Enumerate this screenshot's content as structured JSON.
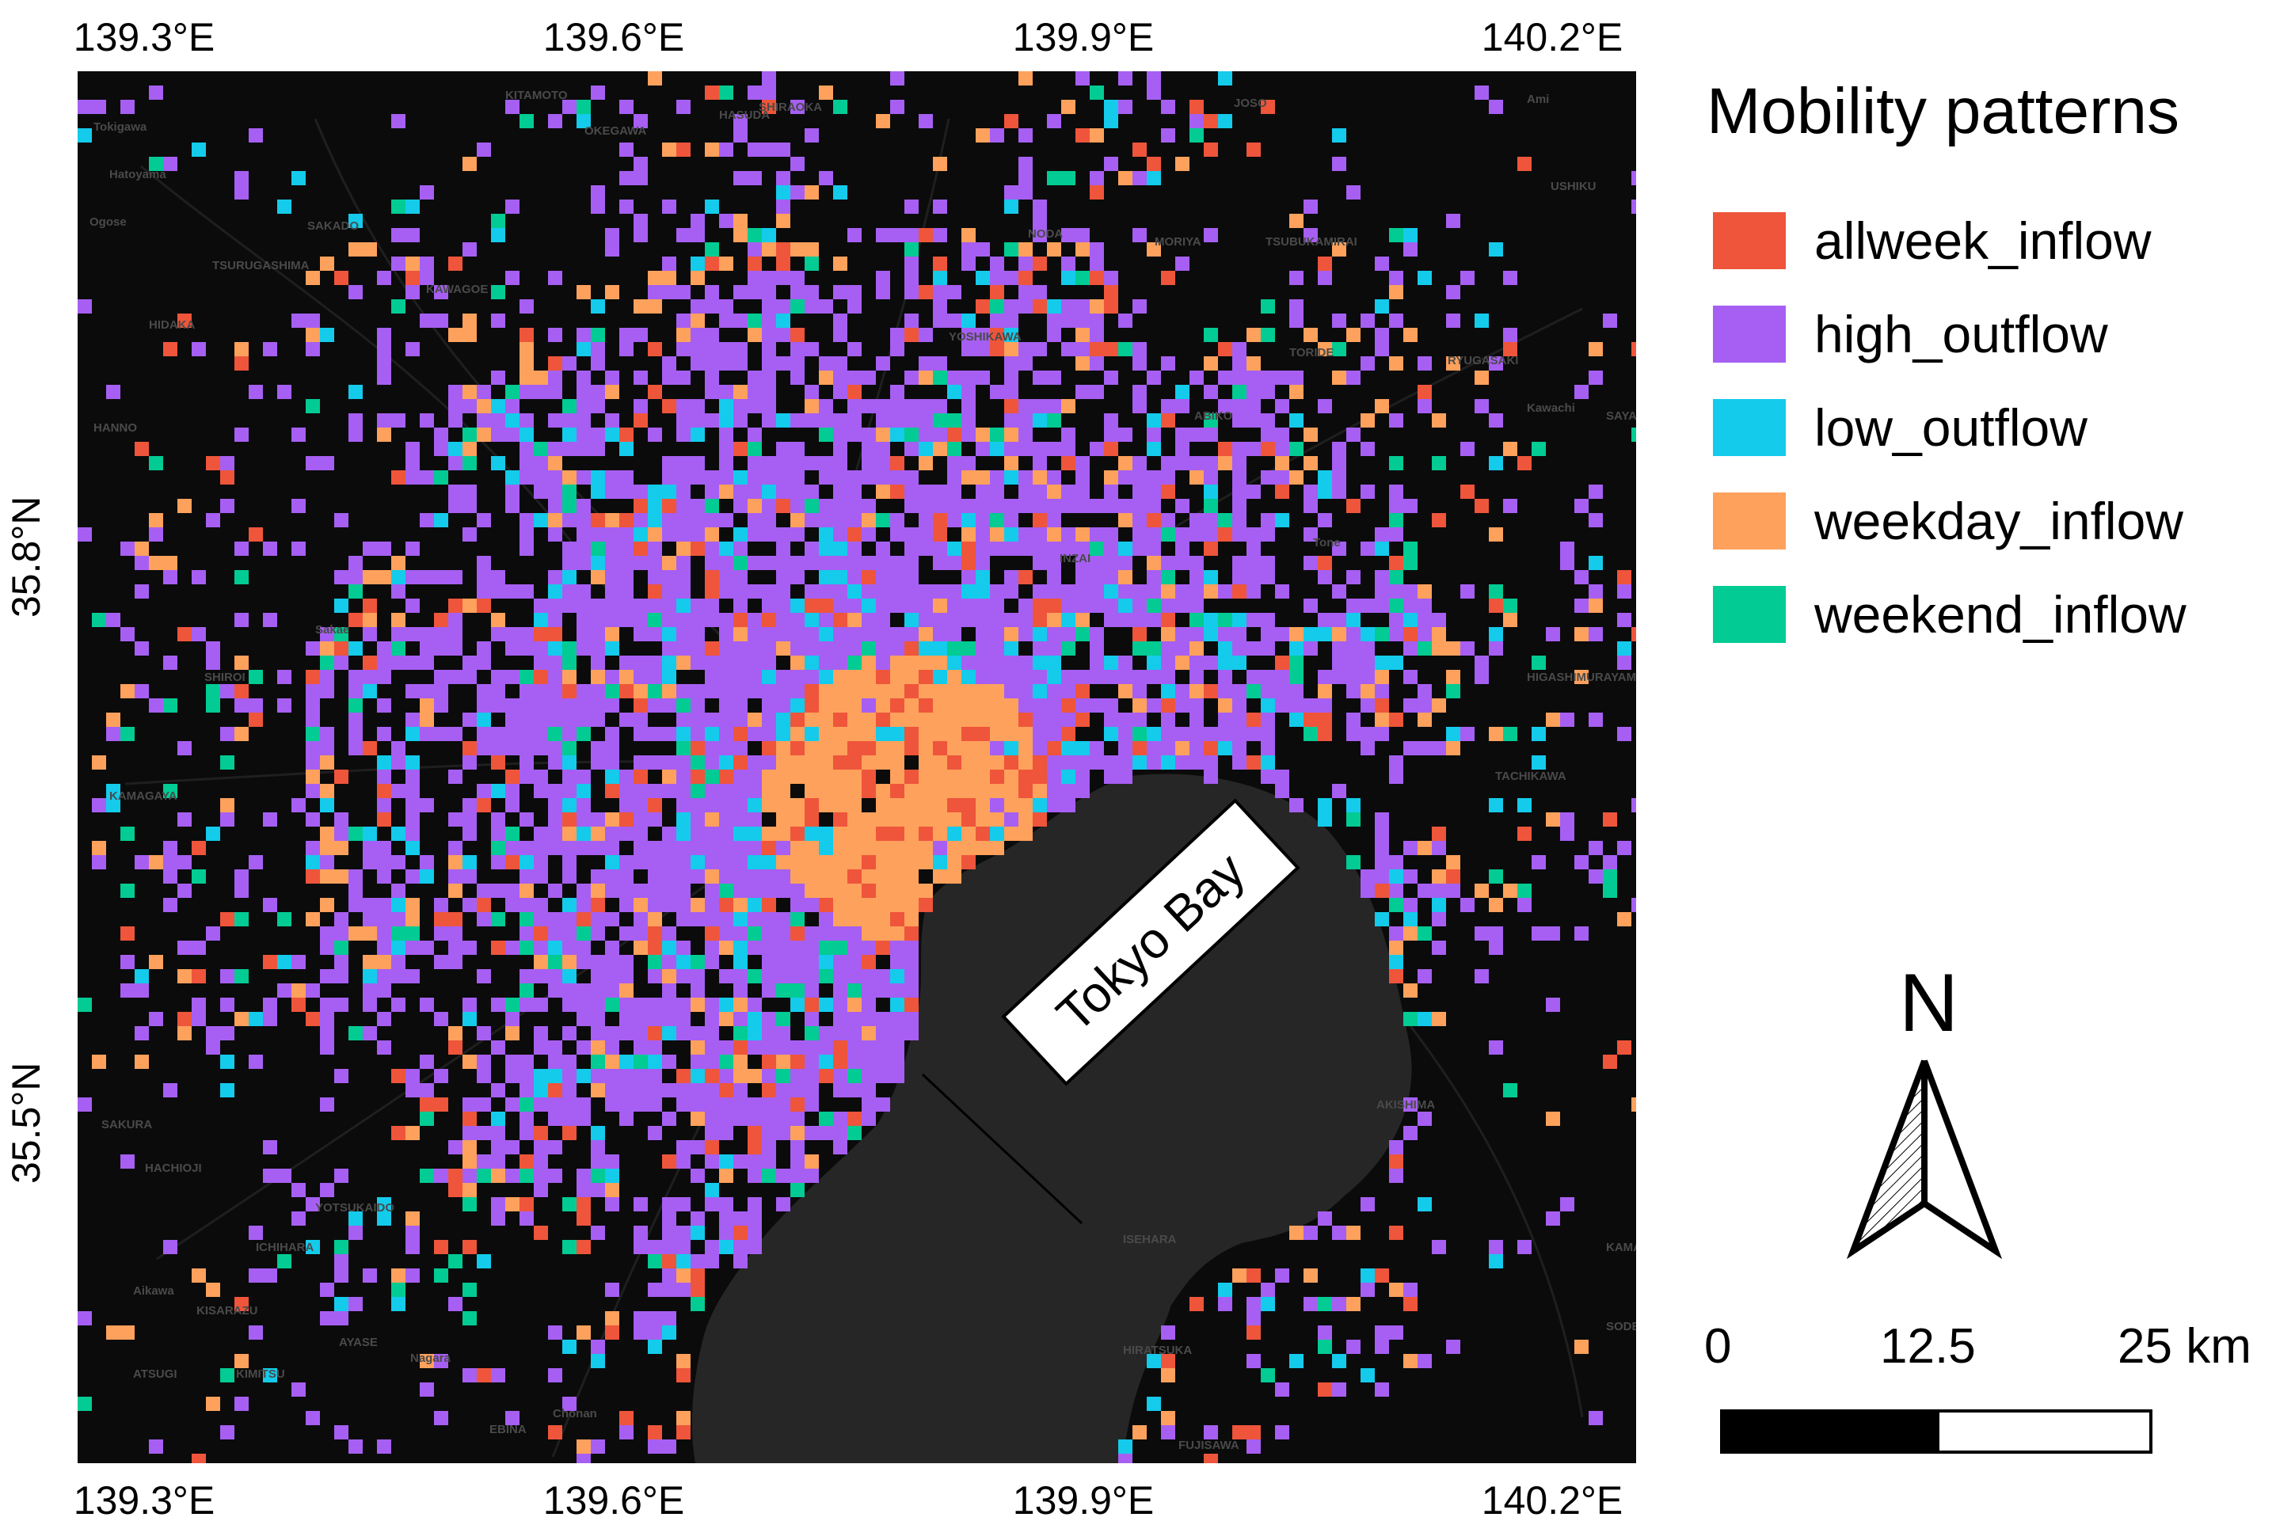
{
  "map": {
    "region": "Tokyo metropolitan area",
    "basemap": "dark",
    "x_ticks": [
      "139.3°E",
      "139.6°E",
      "139.9°E",
      "140.2°E"
    ],
    "y_ticks": [
      "35.8°N",
      "35.5°N"
    ],
    "water_label": "Tokyo Bay",
    "place_labels": [
      "KITAMOTO",
      "OKEGAWA",
      "SHIRAOKA",
      "HASUDA",
      "JOSO",
      "Ami",
      "Tokigawa",
      "Hatoyama",
      "USHIKU",
      "Ogose",
      "SAKADO",
      "NODA",
      "MORIYA",
      "TSUBUKAMIRAI",
      "TSURUGASHIMA",
      "KAWAGOE",
      "HIDAKA",
      "YOSHIKAWA",
      "TORIDE",
      "RYUGASAKI",
      "HANNO",
      "ABIKO",
      "Kawachi",
      "SAYAMA",
      "Tone",
      "INZAI",
      "Sakae",
      "SHIROI",
      "HIGASHIMURAYAMA",
      "KAMAGAYA",
      "TACHIKAWA",
      "AKISHIMA",
      "SAKURA",
      "HACHIOJI",
      "YOTSUKAIDO",
      "ICHIHARA",
      "Aikawa",
      "ATSUGI",
      "AYASE",
      "EBINA",
      "ISEHARA",
      "HIRATSUKA",
      "FUJISAWA",
      "KAMAKURA",
      "SODEGAURA",
      "KISARAZU",
      "KIMITSU",
      "Nagara",
      "Chonan"
    ]
  },
  "legend": {
    "title": "Mobility patterns",
    "items": [
      {
        "label": "allweek_inflow",
        "color": "#ee553b"
      },
      {
        "label": "high_outflow",
        "color": "#a65ff2"
      },
      {
        "label": "low_outflow",
        "color": "#14cbeb"
      },
      {
        "label": "weekday_inflow",
        "color": "#fea15c"
      },
      {
        "label": "weekend_inflow",
        "color": "#02cb93"
      }
    ]
  },
  "north_arrow": {
    "label": "N"
  },
  "scale_bar": {
    "labels": [
      "0",
      "12.5",
      "25 km"
    ]
  }
}
